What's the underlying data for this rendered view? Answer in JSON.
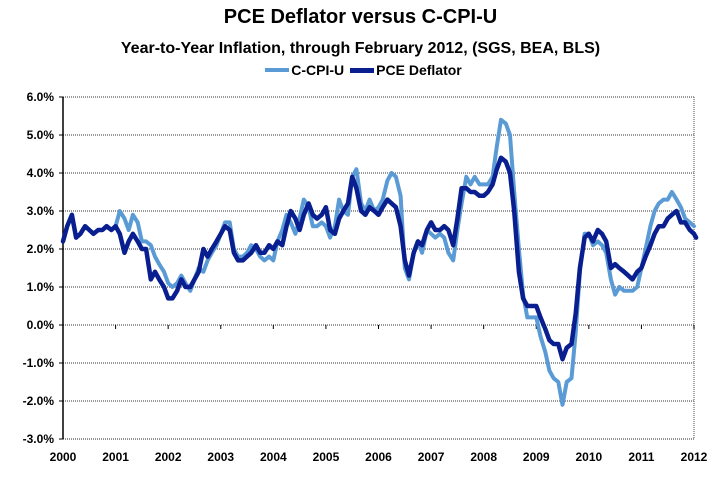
{
  "chart_data": {
    "type": "line",
    "title": "PCE Deflator versus C-CPI-U",
    "subtitle": "Year-to-Year Inflation, through February 2012, (SGS, BEA, BLS)",
    "xlabel": "",
    "ylabel": "",
    "xlim": [
      2000,
      2012
    ],
    "ylim": [
      -3.0,
      6.0
    ],
    "x_ticks": [
      "2000",
      "2001",
      "2002",
      "2003",
      "2004",
      "2005",
      "2006",
      "2007",
      "2008",
      "2009",
      "2010",
      "2011",
      "2012"
    ],
    "y_ticks": [
      "6.0%",
      "5.0%",
      "4.0%",
      "3.0%",
      "2.0%",
      "1.0%",
      "0.0%",
      "-1.0%",
      "-2.0%",
      "-3.0%"
    ],
    "grid": true,
    "legend_position": "top-center",
    "series": [
      {
        "name": "C-CPI-U",
        "color": "#5b9bd5",
        "points": [
          [
            2001.0,
            2.6
          ],
          [
            2001.08,
            3.0
          ],
          [
            2001.17,
            2.8
          ],
          [
            2001.25,
            2.5
          ],
          [
            2001.33,
            2.9
          ],
          [
            2001.42,
            2.7
          ],
          [
            2001.5,
            2.2
          ],
          [
            2001.58,
            2.2
          ],
          [
            2001.67,
            2.1
          ],
          [
            2001.75,
            1.8
          ],
          [
            2001.83,
            1.6
          ],
          [
            2001.92,
            1.4
          ],
          [
            2002.0,
            1.1
          ],
          [
            2002.08,
            1.0
          ],
          [
            2002.17,
            1.1
          ],
          [
            2002.25,
            1.3
          ],
          [
            2002.33,
            1.1
          ],
          [
            2002.42,
            0.9
          ],
          [
            2002.5,
            1.2
          ],
          [
            2002.58,
            1.5
          ],
          [
            2002.67,
            1.4
          ],
          [
            2002.75,
            1.7
          ],
          [
            2002.83,
            1.9
          ],
          [
            2002.92,
            2.1
          ],
          [
            2003.0,
            2.4
          ],
          [
            2003.08,
            2.7
          ],
          [
            2003.17,
            2.7
          ],
          [
            2003.25,
            2.0
          ],
          [
            2003.33,
            1.8
          ],
          [
            2003.42,
            1.8
          ],
          [
            2003.5,
            1.9
          ],
          [
            2003.58,
            2.1
          ],
          [
            2003.67,
            2.0
          ],
          [
            2003.75,
            1.8
          ],
          [
            2003.83,
            1.7
          ],
          [
            2003.92,
            1.8
          ],
          [
            2004.0,
            1.7
          ],
          [
            2004.08,
            2.2
          ],
          [
            2004.17,
            2.5
          ],
          [
            2004.25,
            2.9
          ],
          [
            2004.33,
            2.7
          ],
          [
            2004.42,
            2.4
          ],
          [
            2004.5,
            2.8
          ],
          [
            2004.58,
            3.3
          ],
          [
            2004.67,
            3.1
          ],
          [
            2004.75,
            2.6
          ],
          [
            2004.83,
            2.6
          ],
          [
            2004.92,
            2.7
          ],
          [
            2005.0,
            2.6
          ],
          [
            2005.08,
            2.3
          ],
          [
            2005.17,
            2.6
          ],
          [
            2005.25,
            3.3
          ],
          [
            2005.33,
            3.0
          ],
          [
            2005.42,
            2.9
          ],
          [
            2005.5,
            3.9
          ],
          [
            2005.58,
            4.1
          ],
          [
            2005.67,
            3.2
          ],
          [
            2005.75,
            3.0
          ],
          [
            2005.83,
            3.3
          ],
          [
            2005.92,
            3.0
          ],
          [
            2006.0,
            3.1
          ],
          [
            2006.08,
            3.3
          ],
          [
            2006.17,
            3.8
          ],
          [
            2006.25,
            4.0
          ],
          [
            2006.33,
            3.9
          ],
          [
            2006.42,
            3.4
          ],
          [
            2006.5,
            1.5
          ],
          [
            2006.58,
            1.2
          ],
          [
            2006.67,
            1.9
          ],
          [
            2006.75,
            2.2
          ],
          [
            2006.83,
            1.9
          ],
          [
            2006.92,
            2.5
          ],
          [
            2007.0,
            2.4
          ],
          [
            2007.08,
            2.3
          ],
          [
            2007.17,
            2.4
          ],
          [
            2007.25,
            2.3
          ],
          [
            2007.33,
            1.9
          ],
          [
            2007.42,
            1.7
          ],
          [
            2007.5,
            2.5
          ],
          [
            2007.58,
            3.2
          ],
          [
            2007.67,
            3.9
          ],
          [
            2007.75,
            3.7
          ],
          [
            2007.83,
            3.9
          ],
          [
            2007.92,
            3.7
          ],
          [
            2008.0,
            3.7
          ],
          [
            2008.08,
            3.7
          ],
          [
            2008.17,
            3.9
          ],
          [
            2008.25,
            4.7
          ],
          [
            2008.33,
            5.4
          ],
          [
            2008.42,
            5.3
          ],
          [
            2008.5,
            5.0
          ],
          [
            2008.58,
            3.5
          ],
          [
            2008.67,
            2.0
          ],
          [
            2008.75,
            0.8
          ],
          [
            2008.83,
            0.2
          ],
          [
            2008.92,
            0.2
          ],
          [
            2009.0,
            0.2
          ],
          [
            2009.08,
            -0.3
          ],
          [
            2009.17,
            -0.7
          ],
          [
            2009.25,
            -1.2
          ],
          [
            2009.33,
            -1.4
          ],
          [
            2009.42,
            -1.5
          ],
          [
            2009.5,
            -2.1
          ],
          [
            2009.58,
            -1.5
          ],
          [
            2009.67,
            -1.4
          ],
          [
            2009.75,
            -0.2
          ],
          [
            2009.83,
            1.4
          ],
          [
            2009.92,
            2.4
          ],
          [
            2010.0,
            2.4
          ],
          [
            2010.08,
            2.1
          ],
          [
            2010.17,
            2.2
          ],
          [
            2010.25,
            2.1
          ],
          [
            2010.33,
            1.9
          ],
          [
            2010.42,
            1.2
          ],
          [
            2010.5,
            0.8
          ],
          [
            2010.58,
            1.0
          ],
          [
            2010.67,
            0.9
          ],
          [
            2010.75,
            0.9
          ],
          [
            2010.83,
            0.9
          ],
          [
            2010.92,
            1.0
          ],
          [
            2011.0,
            1.5
          ],
          [
            2011.08,
            2.0
          ],
          [
            2011.17,
            2.6
          ],
          [
            2011.25,
            3.0
          ],
          [
            2011.33,
            3.2
          ],
          [
            2011.42,
            3.3
          ],
          [
            2011.5,
            3.3
          ],
          [
            2011.58,
            3.5
          ],
          [
            2011.67,
            3.3
          ],
          [
            2011.75,
            3.1
          ],
          [
            2011.83,
            2.8
          ],
          [
            2011.92,
            2.7
          ],
          [
            2012.0,
            2.6
          ]
        ]
      },
      {
        "name": "PCE Deflator",
        "color": "#0a1f8f",
        "points": [
          [
            2000.0,
            2.2
          ],
          [
            2000.08,
            2.6
          ],
          [
            2000.17,
            2.9
          ],
          [
            2000.25,
            2.3
          ],
          [
            2000.33,
            2.4
          ],
          [
            2000.42,
            2.6
          ],
          [
            2000.5,
            2.5
          ],
          [
            2000.58,
            2.4
          ],
          [
            2000.67,
            2.5
          ],
          [
            2000.75,
            2.5
          ],
          [
            2000.83,
            2.6
          ],
          [
            2000.92,
            2.5
          ],
          [
            2001.0,
            2.6
          ],
          [
            2001.08,
            2.4
          ],
          [
            2001.17,
            1.9
          ],
          [
            2001.25,
            2.2
          ],
          [
            2001.33,
            2.4
          ],
          [
            2001.42,
            2.2
          ],
          [
            2001.5,
            2.0
          ],
          [
            2001.58,
            2.0
          ],
          [
            2001.67,
            1.2
          ],
          [
            2001.75,
            1.4
          ],
          [
            2001.83,
            1.2
          ],
          [
            2001.92,
            1.0
          ],
          [
            2002.0,
            0.7
          ],
          [
            2002.08,
            0.7
          ],
          [
            2002.17,
            0.9
          ],
          [
            2002.25,
            1.2
          ],
          [
            2002.33,
            1.0
          ],
          [
            2002.42,
            1.0
          ],
          [
            2002.5,
            1.2
          ],
          [
            2002.58,
            1.4
          ],
          [
            2002.67,
            2.0
          ],
          [
            2002.75,
            1.8
          ],
          [
            2002.83,
            2.0
          ],
          [
            2002.92,
            2.2
          ],
          [
            2003.0,
            2.4
          ],
          [
            2003.08,
            2.6
          ],
          [
            2003.17,
            2.5
          ],
          [
            2003.25,
            1.9
          ],
          [
            2003.33,
            1.7
          ],
          [
            2003.42,
            1.7
          ],
          [
            2003.5,
            1.8
          ],
          [
            2003.58,
            1.9
          ],
          [
            2003.67,
            2.1
          ],
          [
            2003.75,
            1.9
          ],
          [
            2003.83,
            1.9
          ],
          [
            2003.92,
            2.1
          ],
          [
            2004.0,
            2.0
          ],
          [
            2004.08,
            2.2
          ],
          [
            2004.17,
            2.1
          ],
          [
            2004.25,
            2.6
          ],
          [
            2004.33,
            3.0
          ],
          [
            2004.42,
            2.8
          ],
          [
            2004.5,
            2.5
          ],
          [
            2004.58,
            2.9
          ],
          [
            2004.67,
            3.2
          ],
          [
            2004.75,
            2.9
          ],
          [
            2004.83,
            2.8
          ],
          [
            2004.92,
            2.9
          ],
          [
            2005.0,
            3.1
          ],
          [
            2005.08,
            2.5
          ],
          [
            2005.17,
            2.4
          ],
          [
            2005.25,
            2.8
          ],
          [
            2005.33,
            3.0
          ],
          [
            2005.42,
            3.2
          ],
          [
            2005.5,
            3.9
          ],
          [
            2005.58,
            3.6
          ],
          [
            2005.67,
            3.0
          ],
          [
            2005.75,
            2.9
          ],
          [
            2005.83,
            3.1
          ],
          [
            2005.92,
            3.0
          ],
          [
            2006.0,
            2.9
          ],
          [
            2006.08,
            3.1
          ],
          [
            2006.17,
            3.3
          ],
          [
            2006.25,
            3.2
          ],
          [
            2006.33,
            3.1
          ],
          [
            2006.42,
            2.6
          ],
          [
            2006.5,
            1.7
          ],
          [
            2006.58,
            1.3
          ],
          [
            2006.67,
            1.9
          ],
          [
            2006.75,
            2.2
          ],
          [
            2006.83,
            2.1
          ],
          [
            2006.92,
            2.5
          ],
          [
            2007.0,
            2.7
          ],
          [
            2007.08,
            2.5
          ],
          [
            2007.17,
            2.5
          ],
          [
            2007.25,
            2.6
          ],
          [
            2007.33,
            2.5
          ],
          [
            2007.42,
            2.1
          ],
          [
            2007.5,
            2.8
          ],
          [
            2007.58,
            3.6
          ],
          [
            2007.67,
            3.6
          ],
          [
            2007.75,
            3.5
          ],
          [
            2007.83,
            3.5
          ],
          [
            2007.92,
            3.4
          ],
          [
            2008.0,
            3.4
          ],
          [
            2008.08,
            3.5
          ],
          [
            2008.17,
            3.7
          ],
          [
            2008.25,
            4.1
          ],
          [
            2008.33,
            4.4
          ],
          [
            2008.42,
            4.3
          ],
          [
            2008.5,
            4.0
          ],
          [
            2008.58,
            3.0
          ],
          [
            2008.67,
            1.4
          ],
          [
            2008.75,
            0.7
          ],
          [
            2008.83,
            0.5
          ],
          [
            2008.92,
            0.5
          ],
          [
            2009.0,
            0.5
          ],
          [
            2009.08,
            0.2
          ],
          [
            2009.17,
            -0.1
          ],
          [
            2009.25,
            -0.4
          ],
          [
            2009.33,
            -0.5
          ],
          [
            2009.42,
            -0.5
          ],
          [
            2009.5,
            -0.9
          ],
          [
            2009.58,
            -0.6
          ],
          [
            2009.67,
            -0.5
          ],
          [
            2009.75,
            0.3
          ],
          [
            2009.83,
            1.5
          ],
          [
            2009.92,
            2.3
          ],
          [
            2010.0,
            2.4
          ],
          [
            2010.08,
            2.2
          ],
          [
            2010.17,
            2.5
          ],
          [
            2010.25,
            2.4
          ],
          [
            2010.33,
            2.2
          ],
          [
            2010.42,
            1.5
          ],
          [
            2010.5,
            1.6
          ],
          [
            2010.58,
            1.5
          ],
          [
            2010.67,
            1.4
          ],
          [
            2010.75,
            1.3
          ],
          [
            2010.83,
            1.2
          ],
          [
            2010.92,
            1.4
          ],
          [
            2011.0,
            1.5
          ],
          [
            2011.08,
            1.8
          ],
          [
            2011.17,
            2.1
          ],
          [
            2011.25,
            2.4
          ],
          [
            2011.33,
            2.6
          ],
          [
            2011.42,
            2.6
          ],
          [
            2011.5,
            2.8
          ],
          [
            2011.58,
            2.9
          ],
          [
            2011.67,
            3.0
          ],
          [
            2011.75,
            2.7
          ],
          [
            2011.83,
            2.7
          ],
          [
            2011.92,
            2.5
          ],
          [
            2012.0,
            2.4
          ],
          [
            2012.04,
            2.3
          ]
        ]
      }
    ]
  }
}
